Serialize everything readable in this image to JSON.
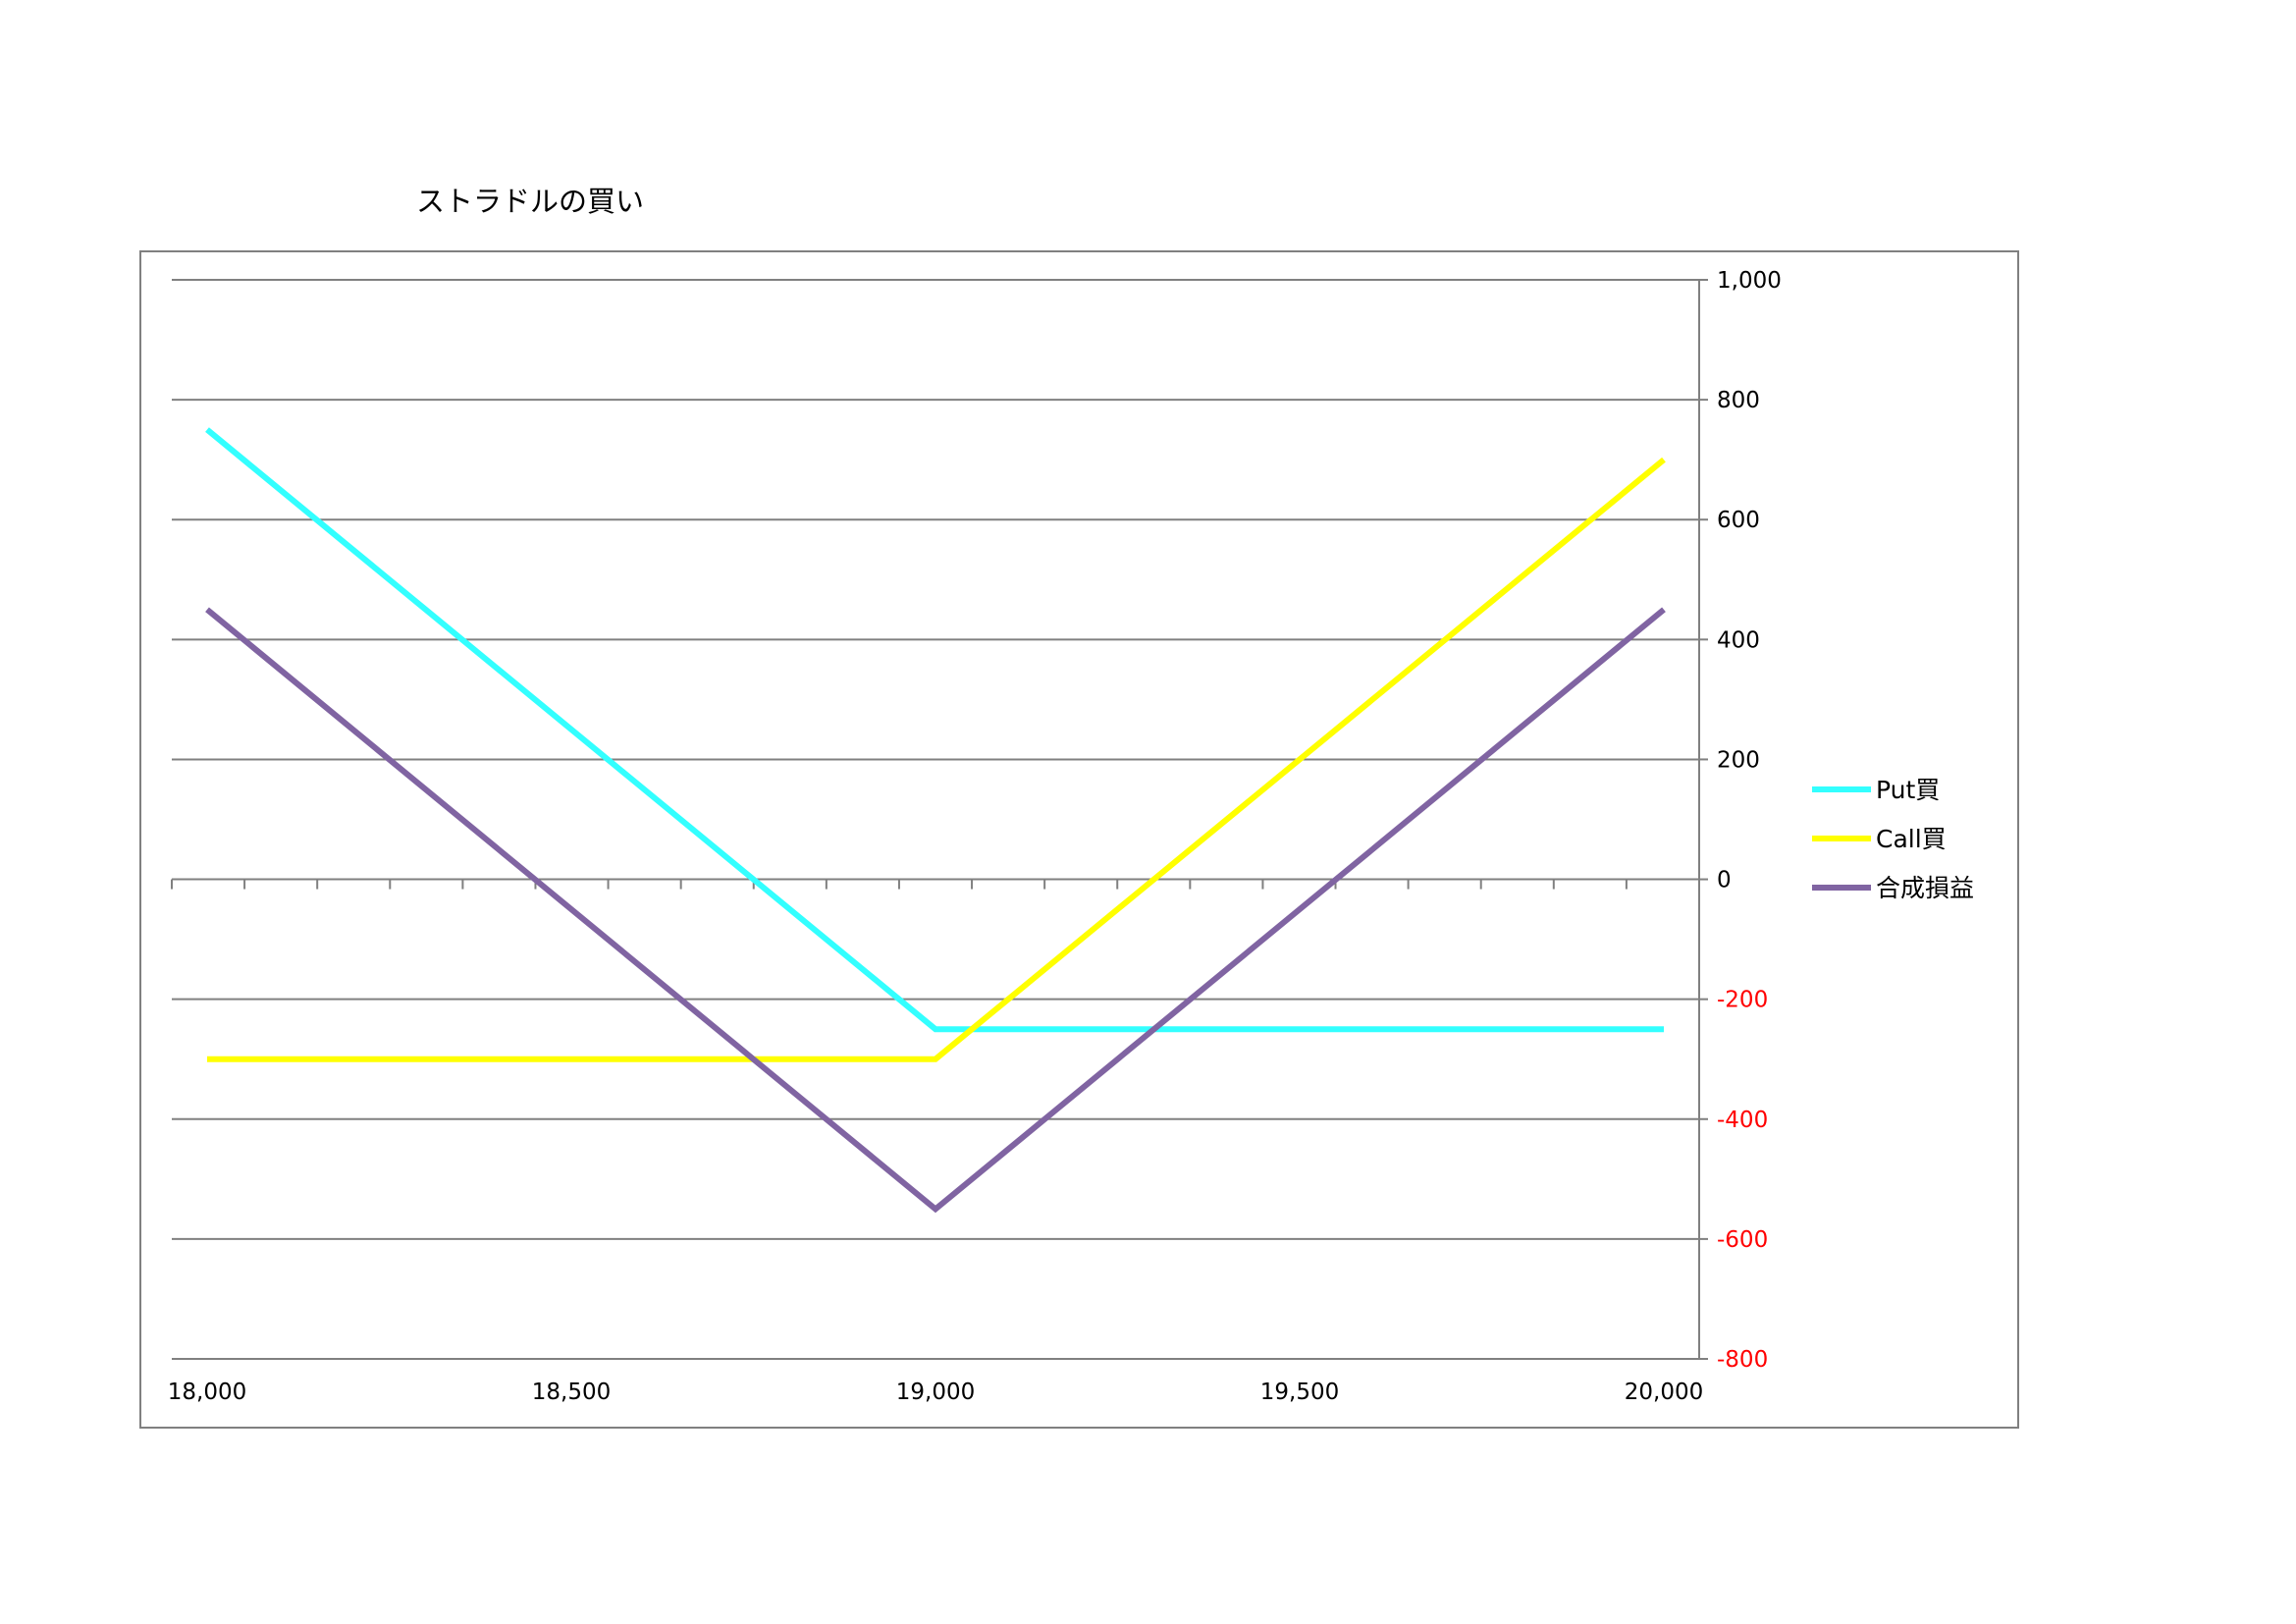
{
  "chart_data": {
    "type": "line",
    "title": "ストラドルの買い",
    "xlabel": "",
    "ylabel": "",
    "xlim": [
      18000,
      20000
    ],
    "ylim": [
      -800,
      1000
    ],
    "x_ticks": [
      18000,
      18500,
      19000,
      19500,
      20000
    ],
    "x_tick_labels": [
      "18,000",
      "18,500",
      "19,000",
      "19,500",
      "20,000"
    ],
    "y_ticks": [
      1000,
      800,
      600,
      400,
      200,
      0,
      -200,
      -400,
      -600,
      -800
    ],
    "y_tick_labels": [
      "1,000",
      "800",
      "600",
      "400",
      "200",
      "0",
      "-200",
      "-400",
      "-600",
      "-800"
    ],
    "y_axis_position": "right",
    "negative_label_color": "#ff0000",
    "positive_label_color": "#000000",
    "grid": true,
    "legend_position": "right",
    "series": [
      {
        "name": "Put買",
        "color": "#33ffff",
        "x": [
          18000,
          19000,
          20000
        ],
        "y": [
          750,
          -250,
          -250
        ]
      },
      {
        "name": "Call買",
        "color": "#ffff00",
        "x": [
          18000,
          19000,
          20000
        ],
        "y": [
          -300,
          -300,
          700
        ]
      },
      {
        "name": "合成損益",
        "color": "#8064a2",
        "x": [
          18000,
          19000,
          20000
        ],
        "y": [
          450,
          -550,
          450
        ]
      }
    ]
  }
}
